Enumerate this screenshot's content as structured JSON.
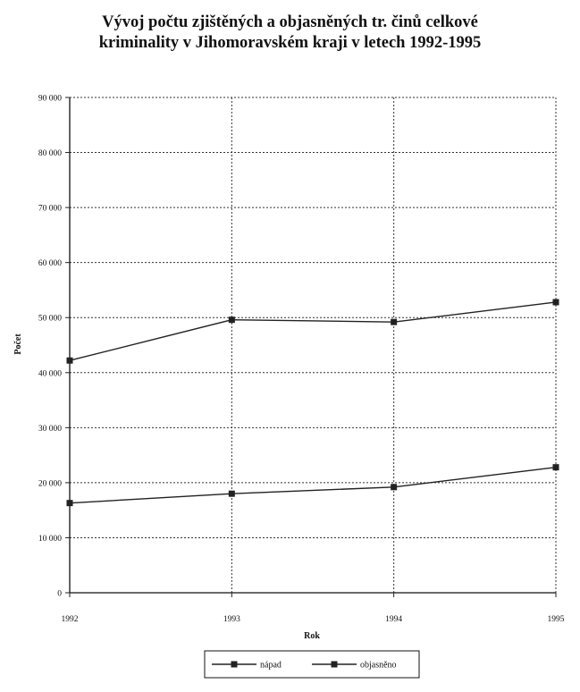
{
  "chart_data": {
    "type": "line",
    "title_line1": "Vývoj počtu zjištěných a objasněných tr. činů celkové",
    "title_line2": "kriminality v Jihomoravském kraji v letech 1992-1995",
    "xlabel": "Rok",
    "ylabel": "Počet",
    "x": [
      "1992",
      "1993",
      "1994",
      "1995"
    ],
    "ylim": [
      0,
      90000
    ],
    "yticks": [
      "0",
      "10 000",
      "20 000",
      "30 000",
      "40 000",
      "50 000",
      "60 000",
      "70 000",
      "80 000",
      "90 000"
    ],
    "grid": true,
    "legend_position": "bottom",
    "series": [
      {
        "name": "nápad",
        "values": [
          42200,
          49600,
          49200,
          52800
        ]
      },
      {
        "name": "objasněno",
        "values": [
          16300,
          18000,
          19200,
          22800
        ]
      }
    ]
  }
}
